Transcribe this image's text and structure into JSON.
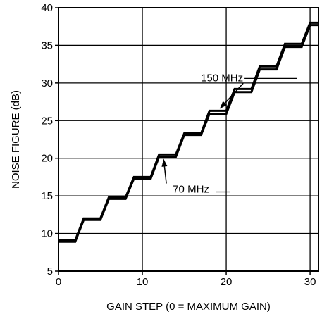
{
  "chart_data": {
    "type": "line",
    "title": "",
    "xlabel": "GAIN STEP (0 = MAXIMUM GAIN)",
    "ylabel": "NOISE FIGURE (dB)",
    "xlim": [
      0,
      31
    ],
    "ylim": [
      5,
      40
    ],
    "x_ticks": [
      0,
      10,
      20,
      30
    ],
    "y_ticks": [
      5,
      10,
      15,
      20,
      25,
      30,
      35,
      40
    ],
    "x_tick_labels": [
      "0",
      "10",
      "20",
      "30"
    ],
    "y_tick_labels": [
      "5",
      "10",
      "15",
      "20",
      "25",
      "30",
      "35",
      "40"
    ],
    "grid": true,
    "series": [
      {
        "name": "70 MHz",
        "color": "#000000",
        "x": [
          0,
          2,
          3,
          5,
          6,
          8,
          9,
          11,
          12,
          14,
          15,
          17,
          18,
          20,
          21,
          23,
          24,
          26,
          27,
          29,
          30,
          31
        ],
        "y": [
          8.9,
          8.9,
          11.8,
          11.8,
          14.6,
          14.6,
          17.3,
          17.3,
          20.2,
          20.2,
          23.1,
          23.1,
          25.9,
          25.9,
          28.8,
          28.8,
          31.8,
          31.8,
          34.8,
          34.8,
          37.7,
          37.7
        ]
      },
      {
        "name": "150 MHz",
        "color": "#000000",
        "x": [
          0,
          2,
          3,
          5,
          6,
          8,
          9,
          11,
          12,
          14,
          15,
          17,
          18,
          20,
          21,
          23,
          24,
          26,
          27,
          29,
          30,
          31
        ],
        "y": [
          9.1,
          9.1,
          12.0,
          12.0,
          14.8,
          14.8,
          17.5,
          17.5,
          20.5,
          20.5,
          23.3,
          23.3,
          26.3,
          26.3,
          29.2,
          29.2,
          32.2,
          32.2,
          35.2,
          35.2,
          38.0,
          38.0
        ]
      }
    ],
    "annotations": [
      {
        "text": "150 MHz",
        "series": "150 MHz",
        "point_x": 19,
        "point_y": 26.3,
        "label_x": 19.5,
        "label_y": 30.7
      },
      {
        "text": "70 MHz",
        "series": "70 MHz",
        "point_x": 12.5,
        "point_y": 20.3,
        "label_x": 15.8,
        "label_y": 15.9
      }
    ]
  }
}
